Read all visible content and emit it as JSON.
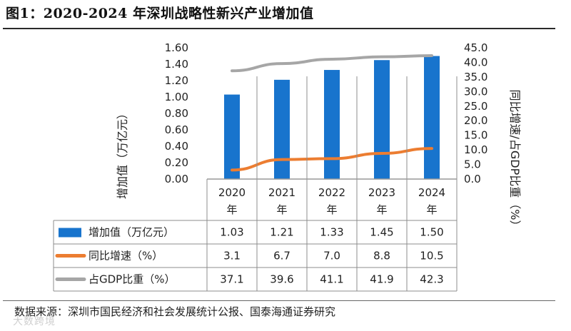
{
  "figure": {
    "title": "图1：2020-2024 年深圳战略性新兴产业增加值",
    "source": "数据来源：深圳市国民经济和社会发展统计公报、国泰海通证券研究",
    "watermark": "大数跨境"
  },
  "chart_data": {
    "type": "bar",
    "title": "2020-2024 年深圳战略性新兴产业增加值",
    "categories": [
      "2020",
      "2021",
      "2022",
      "2023",
      "2024"
    ],
    "category_suffix": "年",
    "series": [
      {
        "name": "增加值（万亿元）",
        "type": "bar",
        "axis": "left",
        "color": "#1874cd",
        "values": [
          1.03,
          1.21,
          1.33,
          1.45,
          1.5
        ],
        "labels": [
          "1.03",
          "1.21",
          "1.33",
          "1.45",
          "1.50"
        ]
      },
      {
        "name": "同比增速（%）",
        "type": "line",
        "axis": "right",
        "color": "#ec7d31",
        "values": [
          3.1,
          6.7,
          7.0,
          8.8,
          10.5
        ],
        "labels": [
          "3.1",
          "6.7",
          "7.0",
          "8.8",
          "10.5"
        ]
      },
      {
        "name": "占GDP比重（%）",
        "type": "line",
        "axis": "right",
        "color": "#a6a6a6",
        "values": [
          37.1,
          39.6,
          41.1,
          41.9,
          42.3
        ],
        "labels": [
          "37.1",
          "39.6",
          "41.1",
          "41.9",
          "42.3"
        ]
      }
    ],
    "y_left": {
      "label": "增加值（万亿元）",
      "min": 0,
      "max": 1.6,
      "ticks": [
        "0.00",
        "0.20",
        "0.40",
        "0.60",
        "0.80",
        "1.00",
        "1.20",
        "1.40",
        "1.60"
      ],
      "tick_values": [
        0,
        0.2,
        0.4,
        0.6,
        0.8,
        1.0,
        1.2,
        1.4,
        1.6
      ]
    },
    "y_right": {
      "label": "同比增速/占GDP比重（%）",
      "min": 0,
      "max": 45,
      "ticks": [
        "0.0",
        "5.0",
        "10.0",
        "15.0",
        "20.0",
        "25.0",
        "30.0",
        "35.0",
        "40.0",
        "45.0"
      ],
      "tick_values": [
        0,
        5,
        10,
        15,
        20,
        25,
        30,
        35,
        40,
        45
      ]
    },
    "legend": "data-table-below"
  }
}
